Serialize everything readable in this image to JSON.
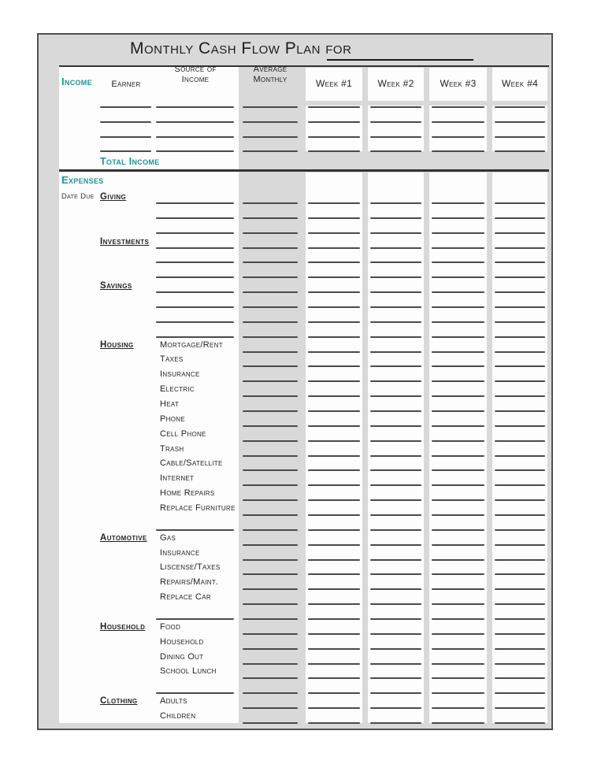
{
  "title": {
    "text": "Monthly Cash Flow Plan for"
  },
  "header": {
    "income_label": "Income",
    "earner": "Earner",
    "source": "Source of Income",
    "average": "Average Monthly",
    "weeks": [
      "Week #1",
      "Week #2",
      "Week #3",
      "Week #4"
    ]
  },
  "income": {
    "blank_rows": 4,
    "total_label": "Total Income"
  },
  "expenses": {
    "label": "Expenses",
    "date_due": "Date Due",
    "categories": [
      {
        "name": "Giving",
        "blank_rows": 3
      },
      {
        "name": "Investments",
        "blank_rows": 3
      },
      {
        "name": "Savings",
        "blank_rows": 3
      },
      {
        "name": "Housing",
        "items": [
          "Mortgage/Rent",
          "Taxes",
          "Insurance",
          "Electric",
          "Heat",
          "Phone",
          "Cell Phone",
          "Trash",
          "Cable/Satellite",
          "Internet",
          "Home Repairs",
          "Replace Furniture"
        ]
      },
      {
        "name": "Automotive",
        "items": [
          "Gas",
          "Insurance",
          "Liscense/Taxes",
          "Repairs/Maint.",
          "Replace Car"
        ]
      },
      {
        "name": "Household",
        "items": [
          "Food",
          "Household",
          "Dining Out",
          "School Lunch"
        ]
      },
      {
        "name": "Clothing",
        "items": [
          "Adults",
          "Children"
        ]
      }
    ]
  },
  "colors": {
    "teal": "#209492",
    "page_gray": "#d9d9d9",
    "line": "#4a4a4a"
  }
}
